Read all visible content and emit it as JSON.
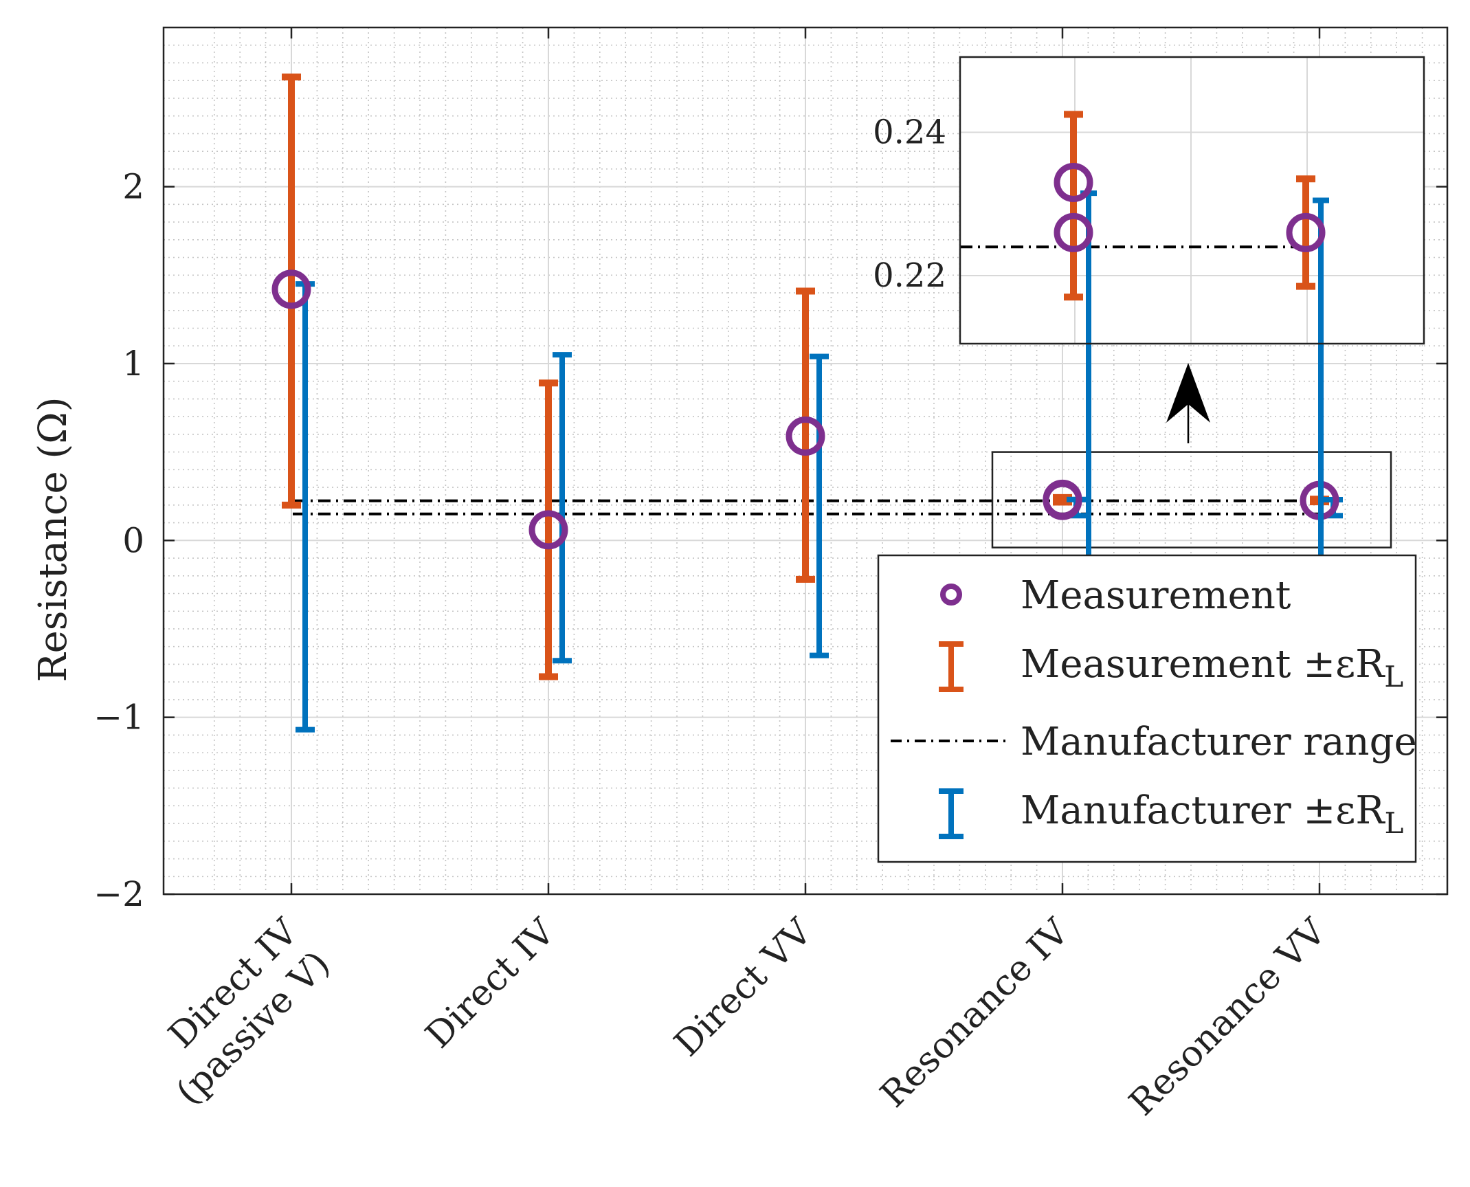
{
  "chart_data": {
    "type": "errorbar",
    "ylabel": "Resistance (Ω)",
    "ylim": [
      -2,
      2.9
    ],
    "yticks": [
      -2,
      -1,
      0,
      1,
      2
    ],
    "ytick_labels": [
      "−2",
      "−1",
      "0",
      "1",
      "2"
    ],
    "grid": true,
    "minor_grid": true,
    "categories": [
      [
        "Direct IV",
        "(passive V)"
      ],
      [
        "Direct IV"
      ],
      [
        "Direct VV"
      ],
      [
        "Resonance IV"
      ],
      [
        "Resonance VV"
      ]
    ],
    "series": [
      {
        "name": "Measurement",
        "marker": "circle",
        "color": "#7E2F8E",
        "points": [
          {
            "category": 0,
            "values": [
              1.42
            ]
          },
          {
            "category": 1,
            "values": [
              0.06
            ]
          },
          {
            "category": 2,
            "values": [
              0.59
            ]
          },
          {
            "category": 3,
            "values": [
              0.233,
              0.226
            ]
          },
          {
            "category": 4,
            "values": [
              0.226
            ]
          }
        ]
      },
      {
        "name": "Measurement ±εR_L",
        "marker": "errorbar",
        "color": "#D95319",
        "bars": [
          {
            "category": 0,
            "low": 0.2,
            "high": 2.62
          },
          {
            "category": 1,
            "low": -0.77,
            "high": 0.89
          },
          {
            "category": 2,
            "low": -0.22,
            "high": 1.41
          },
          {
            "category": 3,
            "low": 0.217,
            "high": 0.2425
          },
          {
            "category": 4,
            "low": 0.2185,
            "high": 0.2335
          }
        ]
      },
      {
        "name": "Manufacturer range",
        "marker": "dash-dot",
        "color": "#000000",
        "lines": [
          0.224,
          0.15
        ]
      },
      {
        "name": "Manufacturer ±εR_L",
        "marker": "errorbar",
        "color": "#0072BD",
        "bars": [
          {
            "category": 0,
            "low": -1.07,
            "high": 1.45
          },
          {
            "category": 1,
            "low": -0.68,
            "high": 1.05
          },
          {
            "category": 2,
            "low": -0.65,
            "high": 1.04
          },
          {
            "category": 3,
            "low": 0.14,
            "high": 0.2315
          },
          {
            "category": 4,
            "low": 0.14,
            "high": 0.2305
          }
        ]
      }
    ],
    "inset": {
      "categories": [
        3,
        4
      ],
      "ylim": [
        0.2105,
        0.2505
      ],
      "yticks": [
        0.22,
        0.24
      ],
      "ytick_labels": [
        "0.22",
        "0.24"
      ]
    },
    "legend": {
      "position": "lower-right",
      "entries": [
        {
          "label": "Measurement",
          "sub": ""
        },
        {
          "label": "Measurement ±εR",
          "sub": "L"
        },
        {
          "label": "Manufacturer range",
          "sub": ""
        },
        {
          "label": "Manufacturer ±εR",
          "sub": "L"
        }
      ]
    }
  }
}
